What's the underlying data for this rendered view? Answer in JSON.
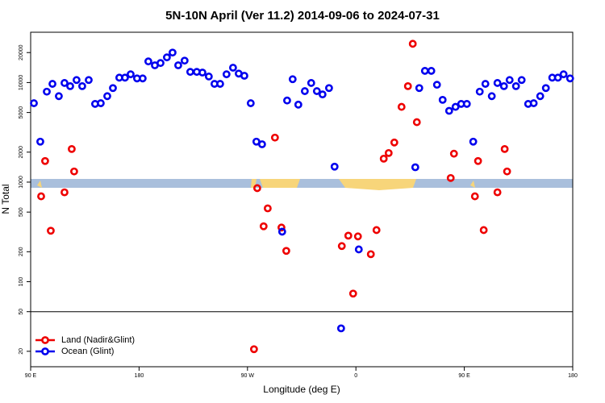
{
  "chart_data": {
    "type": "scatter",
    "title": "5N-10N April (Ver 11.2)   2014-09-06 to 2024-07-31",
    "x_label": "Longitude (deg E)",
    "y_label": "N Total",
    "log_y": true,
    "xlim": [
      90,
      540
    ],
    "xticks": [
      {
        "value": 90,
        "label": "90 E"
      },
      180,
      {
        "value": 270,
        "label": "90 W"
      },
      {
        "value": 360,
        "label": "0"
      },
      {
        "value": 450,
        "label": "90 E"
      },
      {
        "value": 540,
        "label": "180"
      }
    ],
    "ylim": [
      14,
      32000
    ],
    "yticks": [
      20,
      50,
      100,
      200,
      500,
      1000,
      2000,
      5000,
      10000,
      20000
    ],
    "reference_line": 50,
    "legend_position": "bottom-left",
    "series": [
      {
        "name": "Land (Nadir&Glint)",
        "color": "#ee0000",
        "x": [
          98.7,
          102.0,
          106.7,
          118.1,
          124.1,
          126.1,
          275.4,
          278.1,
          283.4,
          286.8,
          292.8,
          298.2,
          302.2,
          348.3,
          353.7,
          357.7,
          361.7,
          372.4,
          377.1,
          383.1,
          387.2,
          391.9,
          397.9,
          403.2,
          407.2,
          410.6,
          438.7,
          441.4,
          458.8,
          461.4,
          466.1,
          477.5,
          483.5,
          485.5
        ],
        "values": [
          720,
          1630,
          325,
          790,
          2150,
          1280,
          21,
          870,
          360,
          545,
          2800,
          350,
          204,
          228,
          290,
          76,
          285,
          189,
          330,
          1720,
          1960,
          2500,
          5700,
          9200,
          24500,
          4000,
          1100,
          1930,
          720,
          1630,
          330,
          790,
          2150,
          1280
        ]
      },
      {
        "name": "Ocean (Glint)",
        "color": "#0000ee",
        "x": [
          92.7,
          98.0,
          103.4,
          108.1,
          113.4,
          118.1,
          122.8,
          128.1,
          132.8,
          138.2,
          143.5,
          148.2,
          153.6,
          158.3,
          163.6,
          168.3,
          173.0,
          178.3,
          183.0,
          187.7,
          193.1,
          197.8,
          203.1,
          207.8,
          212.5,
          217.8,
          222.5,
          227.9,
          232.6,
          237.9,
          242.6,
          247.3,
          252.6,
          258.0,
          262.7,
          267.4,
          272.7,
          277.4,
          282.1,
          298.8,
          302.9,
          307.5,
          312.2,
          317.6,
          322.9,
          327.6,
          332.3,
          337.7,
          342.3,
          347.7,
          362.4,
          409.3,
          412.6,
          417.3,
          422.6,
          427.3,
          432.0,
          437.4,
          442.7,
          447.4,
          452.1,
          457.4,
          462.8,
          467.5,
          472.8,
          477.5,
          482.9,
          487.6,
          492.9,
          497.6,
          503.0,
          507.6,
          513.0,
          517.7,
          523.0,
          527.7,
          532.4,
          537.8
        ],
        "values": [
          6200,
          2550,
          8100,
          9700,
          7300,
          9900,
          9200,
          10600,
          9200,
          10600,
          6100,
          6200,
          7300,
          8800,
          11200,
          11200,
          12100,
          11000,
          11000,
          16300,
          14900,
          15700,
          17900,
          20000,
          14900,
          16600,
          12800,
          12800,
          12600,
          11500,
          9700,
          9700,
          12100,
          14100,
          12300,
          11700,
          6200,
          2550,
          2400,
          318,
          6600,
          10800,
          6000,
          8200,
          9900,
          8200,
          7600,
          8800,
          1430,
          34,
          211,
          1410,
          8800,
          13100,
          13100,
          9500,
          6700,
          5200,
          5700,
          6100,
          6100,
          2550,
          8100,
          9700,
          7300,
          9900,
          9200,
          10600,
          9200,
          10600,
          6100,
          6200,
          7300,
          8800,
          11200,
          11200,
          12100,
          11000
        ]
      }
    ]
  }
}
